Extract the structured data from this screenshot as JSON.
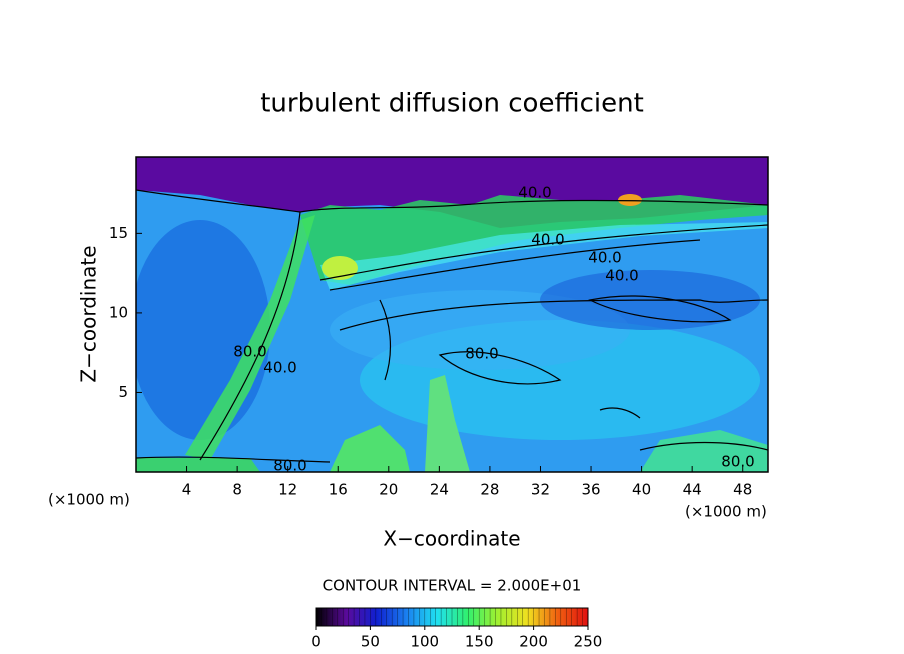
{
  "chart_data": {
    "type": "contour",
    "title": "turbulent diffusion coefficient",
    "x_label": "X−coordinate",
    "y_label": "Z−coordinate",
    "x_unit_label": "(×1000 m)",
    "y_unit_label": "(×1000 m)",
    "xlim": [
      0,
      50
    ],
    "xticks": [
      4,
      8,
      12,
      16,
      20,
      24,
      28,
      32,
      36,
      40,
      44,
      48
    ],
    "ylim": [
      0,
      19.8
    ],
    "yticks": [
      5,
      10,
      15
    ],
    "contour_labels": [
      "40.0",
      "40.0",
      "40.0",
      "40.0",
      "80.0",
      "80.0",
      "80.0",
      "40.0",
      "80.0"
    ],
    "contour_interval_label": "CONTOUR INTERVAL = 2.000E+01",
    "colorbar": {
      "lim": [
        0,
        250
      ],
      "ticks": [
        0,
        50,
        100,
        150,
        200,
        250
      ],
      "colors": [
        "#000000",
        "#5a0a9a",
        "#1020d0",
        "#1a80f0",
        "#20e0f0",
        "#30f070",
        "#a0f030",
        "#f0e020",
        "#f06010",
        "#e01010"
      ]
    }
  }
}
